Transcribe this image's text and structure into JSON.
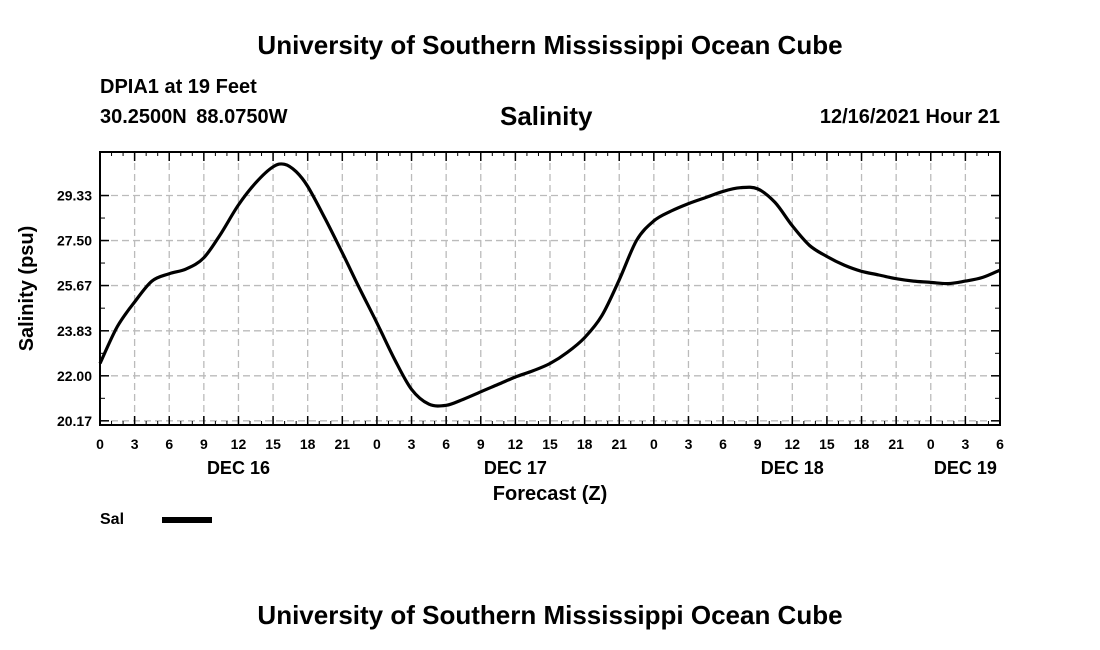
{
  "header": {
    "title": "University of Southern Mississippi Ocean Cube",
    "station": "DPIA1 at 19 Feet",
    "coords": "30.2500N  88.0750W",
    "chart_title": "Salinity",
    "forecast_time": "12/16/2021 Hour 21"
  },
  "legend": {
    "label": "Sal"
  },
  "footer": {
    "title": "University of Southern Mississippi Ocean Cube"
  },
  "chart_data": {
    "type": "line",
    "title": "Salinity",
    "xlabel": "Forecast (Z)",
    "ylabel": "Salinity (psu)",
    "xlim_hours": [
      0,
      78
    ],
    "ylim": [
      20.0,
      31.1
    ],
    "yticks": [
      20.17,
      22.0,
      23.83,
      25.67,
      27.5,
      29.33
    ],
    "ytick_labels": [
      "20.17",
      "22.00",
      "23.83",
      "25.67",
      "27.50",
      "29.33"
    ],
    "xtick_hours": [
      0,
      3,
      6,
      9,
      12,
      15,
      18,
      21,
      24,
      27,
      30,
      33,
      36,
      39,
      42,
      45,
      48,
      51,
      54,
      57,
      60,
      63,
      66,
      69,
      72,
      75,
      78
    ],
    "xtick_labels": [
      "0",
      "3",
      "6",
      "9",
      "12",
      "15",
      "18",
      "21",
      "0",
      "3",
      "6",
      "9",
      "12",
      "15",
      "18",
      "21",
      "0",
      "3",
      "6",
      "9",
      "12",
      "15",
      "18",
      "21",
      "0",
      "3",
      "6"
    ],
    "day_labels": [
      {
        "label": "DEC 16",
        "hour": 12
      },
      {
        "label": "DEC 17",
        "hour": 36
      },
      {
        "label": "DEC 18",
        "hour": 60
      },
      {
        "label": "DEC 19",
        "hour": 75
      }
    ],
    "grid": true,
    "series": [
      {
        "name": "Sal",
        "x": [
          0,
          1.5,
          3,
          4.5,
          6,
          7.5,
          9,
          10.5,
          12,
          13.5,
          15,
          16,
          17,
          18,
          19.5,
          21,
          22.5,
          24,
          25.5,
          27,
          28.5,
          30,
          31.5,
          33,
          34.5,
          36,
          37.5,
          39,
          40.5,
          42,
          43.5,
          45,
          46.5,
          48,
          49.5,
          51,
          52.5,
          54,
          55.5,
          57,
          58.5,
          60,
          61.5,
          63,
          64.5,
          66,
          67.5,
          69,
          70.5,
          72,
          73.5,
          75,
          76.5,
          78
        ],
        "y": [
          22.5,
          24.0,
          25.0,
          25.85,
          26.15,
          26.35,
          26.8,
          27.8,
          28.95,
          29.85,
          30.5,
          30.6,
          30.3,
          29.7,
          28.4,
          27.0,
          25.55,
          24.15,
          22.7,
          21.45,
          20.85,
          20.8,
          21.05,
          21.35,
          21.65,
          21.95,
          22.2,
          22.5,
          22.95,
          23.55,
          24.45,
          25.9,
          27.5,
          28.3,
          28.7,
          29.0,
          29.25,
          29.5,
          29.65,
          29.6,
          29.05,
          28.1,
          27.3,
          26.85,
          26.5,
          26.25,
          26.1,
          25.95,
          25.85,
          25.8,
          25.75,
          25.85,
          26.0,
          26.3
        ]
      }
    ]
  }
}
